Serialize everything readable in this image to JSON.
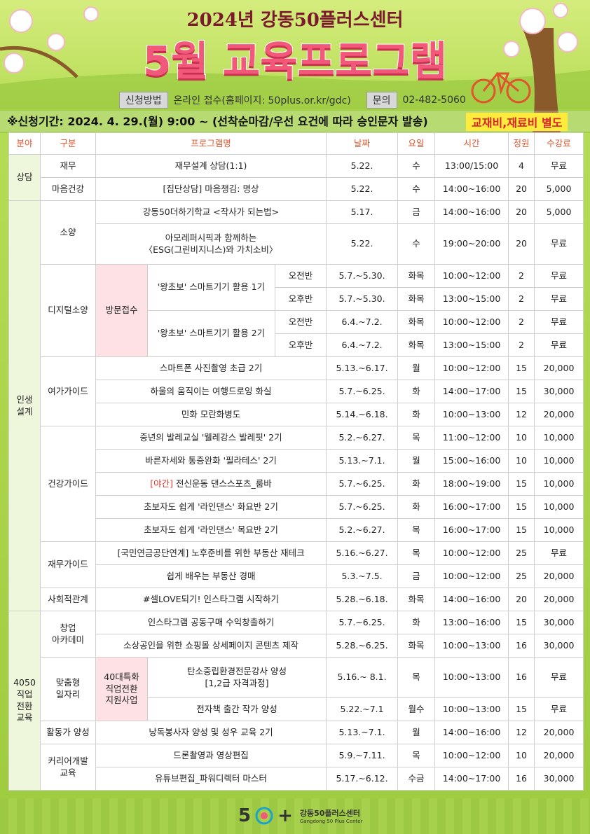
{
  "header": {
    "subtitle": "2024년 강동50플러스센터",
    "title": "5월 교육프로그램"
  },
  "apply": {
    "label": "신청방법",
    "text": "온라인 접수(홈페이지: 50plus.or.kr/gdc)",
    "contact_label": "문의",
    "phone": "02-482-5060"
  },
  "period": {
    "text": "※신청기간: 2024. 4. 29.(월) 9:00 ~ (선착순마감/우선 요건에 따라 승인문자 발송)",
    "note": "교재비,재료비 별도"
  },
  "table": {
    "columns": [
      "분야",
      "구분",
      "프로그램명",
      "날짜",
      "요일",
      "시간",
      "정원",
      "수강료"
    ],
    "rows": [
      [
        "상담",
        "재무",
        "재무설계 상담(1:1)",
        "5.22.",
        "수",
        "13:00/15:00",
        "4",
        "무료"
      ],
      [
        "마음건강",
        "[집단상담] 마음챙김: 명상",
        "5.22.",
        "수",
        "14:00~16:00",
        "20",
        "5,000"
      ],
      [
        "인생\n설계",
        "소양",
        "강동50더하기학교 <작사가 되는법>",
        "5.17.",
        "금",
        "14:00~16:00",
        "20",
        "5,000"
      ],
      [
        "아모레퍼시픽과 함께하는\n〈ESG(그린비지니스)와 가치소비〉",
        "5.22.",
        "수",
        "19:00~20:00",
        "20",
        "무료"
      ],
      [
        "디지털소양",
        "방문접수",
        "'왕초보' 스마트기기 활용 1기",
        "오전반",
        "5.7.~5.30.",
        "화목",
        "10:00~12:00",
        "2",
        "무료"
      ],
      [
        "오후반",
        "5.7.~5.30.",
        "화목",
        "13:00~15:00",
        "2",
        "무료"
      ],
      [
        "'왕초보' 스마트기기 활용 2기",
        "오전반",
        "6.4.~7.2.",
        "화목",
        "10:00~12:00",
        "2",
        "무료"
      ],
      [
        "오후반",
        "6.4.~7.2.",
        "화목",
        "13:00~15:00",
        "2",
        "무료"
      ],
      [
        "여가가이드",
        "스마트폰 사진촬영 초급 2기",
        "5.13.~6.17.",
        "월",
        "10:00~12:00",
        "15",
        "20,000"
      ],
      [
        "하울의 움직이는 여행드로잉 화실",
        "5.7.~6.25.",
        "화",
        "14:00~17:00",
        "15",
        "30,000"
      ],
      [
        "민화 모란화병도",
        "5.14.~6.18.",
        "화",
        "10:00~13:00",
        "12",
        "20,000"
      ],
      [
        "건강가이드",
        "중년의 발레교실 '웰레강스 발레핏' 2기",
        "5.2.~6.27.",
        "목",
        "11:00~12:00",
        "10",
        "10,000"
      ],
      [
        "바른자세와 통증완화 '필라테스' 2기",
        "5.13.~7.1.",
        "월",
        "15:00~16:00",
        "10",
        "10,000"
      ],
      [
        {
          "tag": "[야간]",
          "text": "전신운동 댄스스포츠_룸바"
        },
        "5.7.~6.25.",
        "화",
        "18:00~19:00",
        "15",
        "10,000"
      ],
      [
        "초보자도 쉽게 '라인댄스' 화요반 2기",
        "5.7.~6.25.",
        "화",
        "16:00~17:00",
        "15",
        "10,000"
      ],
      [
        "초보자도 쉽게 '라인댄스' 목요반 2기",
        "5.2.~6.27.",
        "목",
        "16:00~17:00",
        "15",
        "10,000"
      ],
      [
        "재무가이드",
        "[국민연금공단연계] 노후준비를 위한 부동산 재테크",
        "5.16.~6.27.",
        "목",
        "10:00~12:00",
        "25",
        "무료"
      ],
      [
        "쉽게 배우는 부동산 경매",
        "5.3.~7.5.",
        "금",
        "10:00~12:00",
        "25",
        "20,000"
      ],
      [
        "사회적관계",
        "#셀LOVE되기! 인스타그램 시작하기",
        "5.28.~6.18.",
        "화목",
        "14:00~16:00",
        "20",
        "20,000"
      ],
      [
        "4050\n직업\n전환\n교육",
        "창업\n아카데미",
        "인스타그램 공동구매 수익창출하기",
        "5.7.~6.25.",
        "화",
        "13:00~16:00",
        "15",
        "30,000"
      ],
      [
        "소상공인을 위한 쇼핑몰 상세페이지 콘텐츠 제작",
        "5.28.~6.25.",
        "화목",
        "10:00~13:00",
        "16",
        "30,000"
      ],
      [
        "맞춤형\n일자리",
        "40대특화\n직업전환\n지원사업",
        "탄소중립환경전문강사 양성\n[1,2급 자격과정]",
        "5.16.~ 8.1.",
        "목",
        "10:00~13:00",
        "16",
        "무료"
      ],
      [
        "전자책 출간 작가 양성",
        "5.22.~7.1",
        "월수",
        "10:00~13:00",
        "15",
        "무료"
      ],
      [
        "활동가 양성",
        "낭독봉사자 양성 및 성우 교육 2기",
        "5.13.~7.1.",
        "월",
        "14:00~16:00",
        "12",
        "20,000"
      ],
      [
        "커리어개발\n교육",
        "드론촬영과 영상편집",
        "5.9.~7.11.",
        "목",
        "10:00~12:00",
        "10",
        "20,000"
      ],
      [
        "유튜브편집_파워디렉터 마스터",
        "5.17.~6.12.",
        "수금",
        "14:00~17:00",
        "16",
        "30,000"
      ]
    ]
  },
  "footer": {
    "logo_left": "5",
    "logo_right": "+",
    "brand": "강동50플러스센터",
    "brand_en": "Gangdong 50 Plus Center"
  }
}
